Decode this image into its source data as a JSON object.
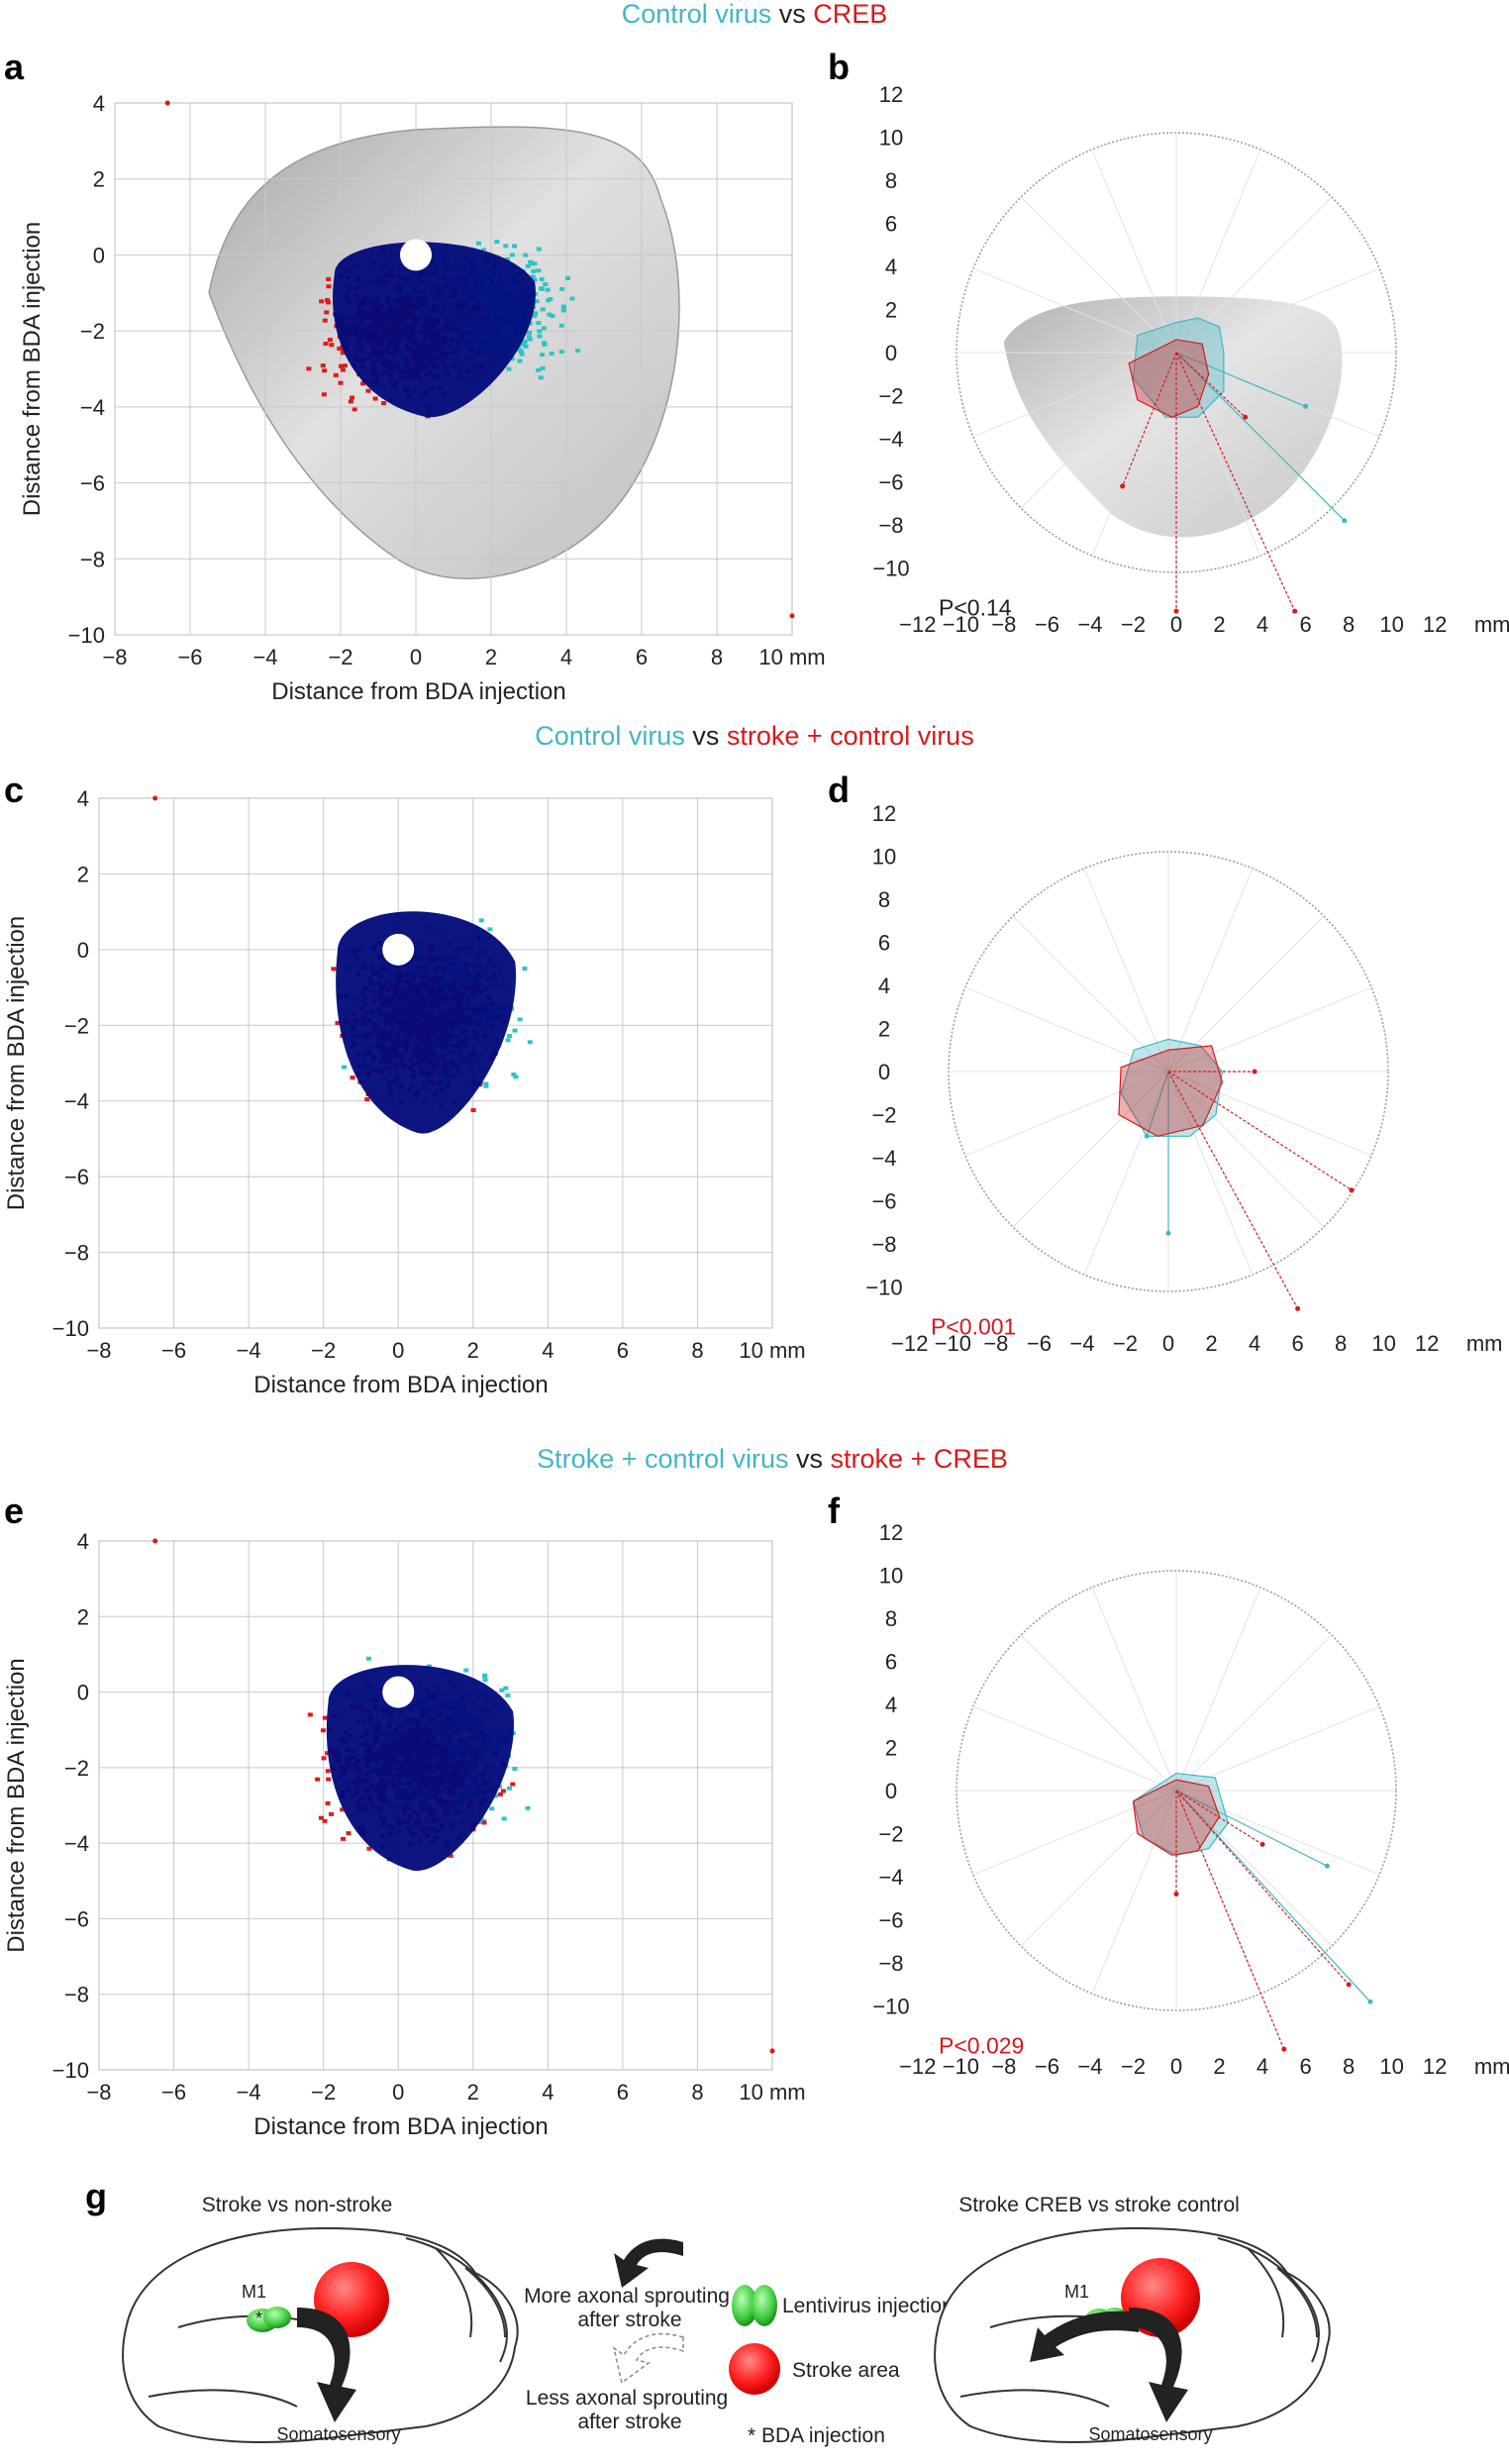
{
  "colors": {
    "control": "#41b6c4",
    "treatment": "#d7191c",
    "overlap": "#00087a",
    "cloud_cyan": "#2ec4c4",
    "cloud_red": "#e01a1a"
  },
  "titles": [
    {
      "left": "Control virus",
      "vs": "vs",
      "right": "CREB"
    },
    {
      "left": "Control virus",
      "vs": "vs",
      "right": "stroke + control virus"
    },
    {
      "left": "Stroke + control virus",
      "vs": "vs",
      "right": "stroke + CREB"
    }
  ],
  "chart_data": [
    {
      "panel": "a",
      "type": "scatter",
      "xlabel": "Distance from BDA injection",
      "ylabel": "Distance from BDA injection",
      "xlim": [
        -8,
        10
      ],
      "ylim": [
        -10,
        4
      ],
      "unit": "mm",
      "xticks": [
        -8,
        -6,
        -4,
        -2,
        0,
        2,
        4,
        6,
        8,
        10
      ],
      "yticks": [
        4,
        2,
        0,
        -2,
        -4,
        -6,
        -8,
        -10
      ],
      "series": [
        {
          "name": "Control virus",
          "color": "#41b6c4",
          "center": [
            1.5,
            -1.5
          ],
          "spread": [
            3.0,
            2.2
          ]
        },
        {
          "name": "CREB",
          "color": "#d7191c",
          "center": [
            -0.5,
            -2.0
          ],
          "spread": [
            2.8,
            2.4
          ]
        }
      ],
      "outliers": [
        [
          -6.6,
          4.0
        ],
        [
          10.0,
          -9.5
        ]
      ],
      "background": "brain section"
    },
    {
      "panel": "b",
      "type": "polar",
      "rlim": [
        -12,
        12
      ],
      "ticks": [
        -12,
        -10,
        -8,
        -6,
        -4,
        -2,
        0,
        2,
        4,
        6,
        8,
        10,
        12
      ],
      "unit": "mm",
      "pvalue": "P<0.14",
      "pvalue_color": "#222222",
      "series": [
        {
          "name": "Control virus",
          "color": "#41b6c4",
          "polygon": [
            [
              0,
              1.4
            ],
            [
              1,
              1.6
            ],
            [
              2,
              1.2
            ],
            [
              2.2,
              0
            ],
            [
              2.2,
              -1.8
            ],
            [
              1,
              -3
            ],
            [
              -0.5,
              -3
            ],
            [
              -2,
              -1.2
            ],
            [
              -1.8,
              0.8
            ]
          ],
          "vectors": [
            [
              6,
              -2.5
            ],
            [
              7.8,
              -7.8
            ]
          ]
        },
        {
          "name": "CREB",
          "color": "#d7191c",
          "polygon": [
            [
              0,
              0.6
            ],
            [
              1.2,
              0.4
            ],
            [
              1.5,
              -1
            ],
            [
              1,
              -2.5
            ],
            [
              -0.2,
              -3
            ],
            [
              -1.8,
              -2.2
            ],
            [
              -2.2,
              -0.5
            ]
          ],
          "vectors": [
            [
              -2.5,
              -6.2
            ],
            [
              0,
              -12
            ],
            [
              5.5,
              -12
            ],
            [
              3.2,
              -3
            ]
          ]
        }
      ],
      "background": "brain section"
    },
    {
      "panel": "c",
      "type": "scatter",
      "xlabel": "Distance from BDA injection",
      "ylabel": "Distance from BDA injection",
      "xlim": [
        -8,
        10
      ],
      "ylim": [
        -10,
        4
      ],
      "unit": "mm",
      "xticks": [
        -8,
        -6,
        -4,
        -2,
        0,
        2,
        4,
        6,
        8,
        10
      ],
      "yticks": [
        4,
        2,
        0,
        -2,
        -4,
        -6,
        -8,
        -10
      ],
      "series": [
        {
          "name": "Control virus",
          "color": "#41b6c4",
          "center": [
            1.0,
            -1.5
          ],
          "spread": [
            2.8,
            2.8
          ]
        },
        {
          "name": "stroke + control virus",
          "color": "#d7191c",
          "center": [
            0.5,
            -1.8
          ],
          "spread": [
            2.5,
            2.8
          ]
        }
      ],
      "outliers": [
        [
          -6.5,
          4.0
        ]
      ]
    },
    {
      "panel": "d",
      "type": "polar",
      "rlim": [
        -12,
        12
      ],
      "ticks": [
        -12,
        -10,
        -8,
        -6,
        -4,
        -2,
        0,
        2,
        4,
        6,
        8,
        10,
        12
      ],
      "unit": "mm",
      "pvalue": "P<0.001",
      "pvalue_color": "#d7191c",
      "series": [
        {
          "name": "Control virus",
          "color": "#41b6c4",
          "polygon": [
            [
              0,
              1.5
            ],
            [
              1.5,
              1.2
            ],
            [
              2.5,
              0
            ],
            [
              2.2,
              -2
            ],
            [
              1,
              -3
            ],
            [
              -1,
              -3
            ],
            [
              -2.2,
              -1
            ],
            [
              -1.6,
              1
            ]
          ],
          "vectors": [
            [
              0,
              -7.5
            ],
            [
              -1,
              -3
            ]
          ]
        },
        {
          "name": "stroke + control virus",
          "color": "#d7191c",
          "polygon": [
            [
              0,
              1
            ],
            [
              2,
              1.2
            ],
            [
              2.5,
              -0.5
            ],
            [
              1.6,
              -2.5
            ],
            [
              -0.5,
              -3
            ],
            [
              -2.3,
              -2
            ],
            [
              -2.2,
              0.2
            ]
          ],
          "vectors": [
            [
              8.5,
              -5.5
            ],
            [
              6,
              -11
            ],
            [
              4,
              0
            ]
          ]
        }
      ]
    },
    {
      "panel": "e",
      "type": "scatter",
      "xlabel": "Distance from BDA injection",
      "ylabel": "Distance from BDA injection",
      "xlim": [
        -8,
        10
      ],
      "ylim": [
        -10,
        4
      ],
      "unit": "mm",
      "xticks": [
        -8,
        -6,
        -4,
        -2,
        0,
        2,
        4,
        6,
        8,
        10
      ],
      "yticks": [
        4,
        2,
        0,
        -2,
        -4,
        -6,
        -8,
        -10
      ],
      "series": [
        {
          "name": "Stroke + control virus",
          "color": "#41b6c4",
          "center": [
            1.0,
            -1.5
          ],
          "spread": [
            2.6,
            2.6
          ]
        },
        {
          "name": "stroke + CREB",
          "color": "#d7191c",
          "center": [
            0.2,
            -2.0
          ],
          "spread": [
            3.0,
            2.6
          ]
        }
      ],
      "outliers": [
        [
          -6.5,
          4.0
        ],
        [
          10.0,
          -9.5
        ]
      ]
    },
    {
      "panel": "f",
      "type": "polar",
      "rlim": [
        -12,
        12
      ],
      "ticks": [
        -12,
        -10,
        -8,
        -6,
        -4,
        -2,
        0,
        2,
        4,
        6,
        8,
        10,
        12
      ],
      "unit": "mm",
      "pvalue": "P<0.029",
      "pvalue_color": "#d7191c",
      "series": [
        {
          "name": "Stroke + control virus",
          "color": "#41b6c4",
          "polygon": [
            [
              0,
              0.8
            ],
            [
              1.8,
              0.6
            ],
            [
              2.4,
              -1.5
            ],
            [
              1.5,
              -2.7
            ],
            [
              0,
              -3
            ],
            [
              -1.5,
              -2.2
            ],
            [
              -2,
              -0.5
            ]
          ],
          "vectors": [
            [
              7,
              -3.5
            ],
            [
              9,
              -9.8
            ]
          ]
        },
        {
          "name": "stroke + CREB",
          "color": "#d7191c",
          "polygon": [
            [
              0,
              0.5
            ],
            [
              1.5,
              0.2
            ],
            [
              2,
              -1.2
            ],
            [
              1,
              -2.8
            ],
            [
              -0.2,
              -3
            ],
            [
              -1.8,
              -2
            ],
            [
              -2,
              -0.5
            ]
          ],
          "vectors": [
            [
              4,
              -2.5
            ],
            [
              8,
              -9
            ],
            [
              5,
              -12
            ],
            [
              0,
              -4.8
            ]
          ]
        }
      ]
    }
  ],
  "diagram": {
    "panel": "g",
    "left_title": "Stroke vs non-stroke",
    "right_title": "Stroke CREB vs stroke control",
    "m1_left": "M1",
    "m1_right": "M1",
    "somato_left": "Somatosensory",
    "somato_right": "Somatosensory",
    "more": "More axonal sprouting\nafter stroke",
    "less": "Less axonal sprouting\nafter stroke",
    "legend_lenti": "Lentivirus injection",
    "legend_stroke": "Stroke area",
    "legend_bda": "* BDA injection"
  }
}
